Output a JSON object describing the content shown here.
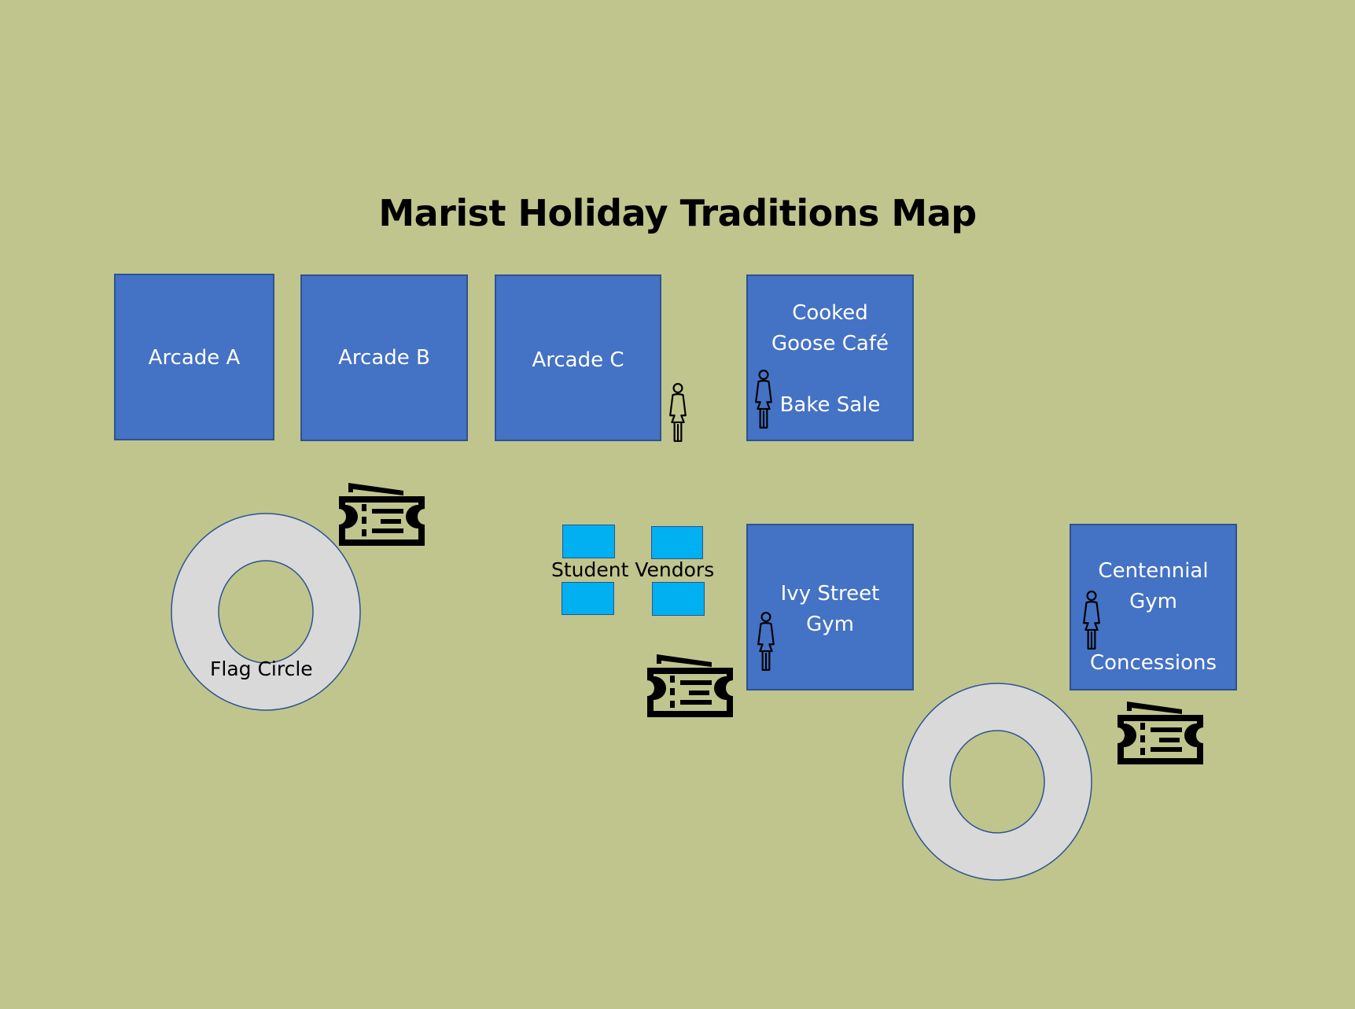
{
  "colors": {
    "background": "#bfc58d",
    "building_fill": "#4472c4",
    "building_border": "#2f528f",
    "building_text": "#ffffff",
    "vendor_fill": "#00b0f0",
    "circle_fill": "#d9d9d9",
    "circle_stroke": "#2f528f",
    "text_dark": "#000000"
  },
  "map": {
    "title": "Marist Holiday Traditions Map",
    "buildings": [
      {
        "id": "arcade-a",
        "lines": [
          "Arcade A"
        ]
      },
      {
        "id": "arcade-b",
        "lines": [
          "Arcade B"
        ]
      },
      {
        "id": "arcade-c",
        "lines": [
          "Arcade C"
        ]
      },
      {
        "id": "cafe",
        "lines": [
          "Cooked",
          "Goose Café",
          "Bake Sale"
        ]
      },
      {
        "id": "ivy-gym",
        "lines": [
          "Ivy Street",
          "Gym"
        ]
      },
      {
        "id": "centennial-gym",
        "lines": [
          "Centennial",
          "Gym",
          "Concessions"
        ]
      }
    ],
    "vendors_label": "Student Vendors",
    "flag_circle_label": "Flag Circle",
    "icons": {
      "restroom": "person-icon",
      "ticket": "ticket-icon"
    }
  }
}
